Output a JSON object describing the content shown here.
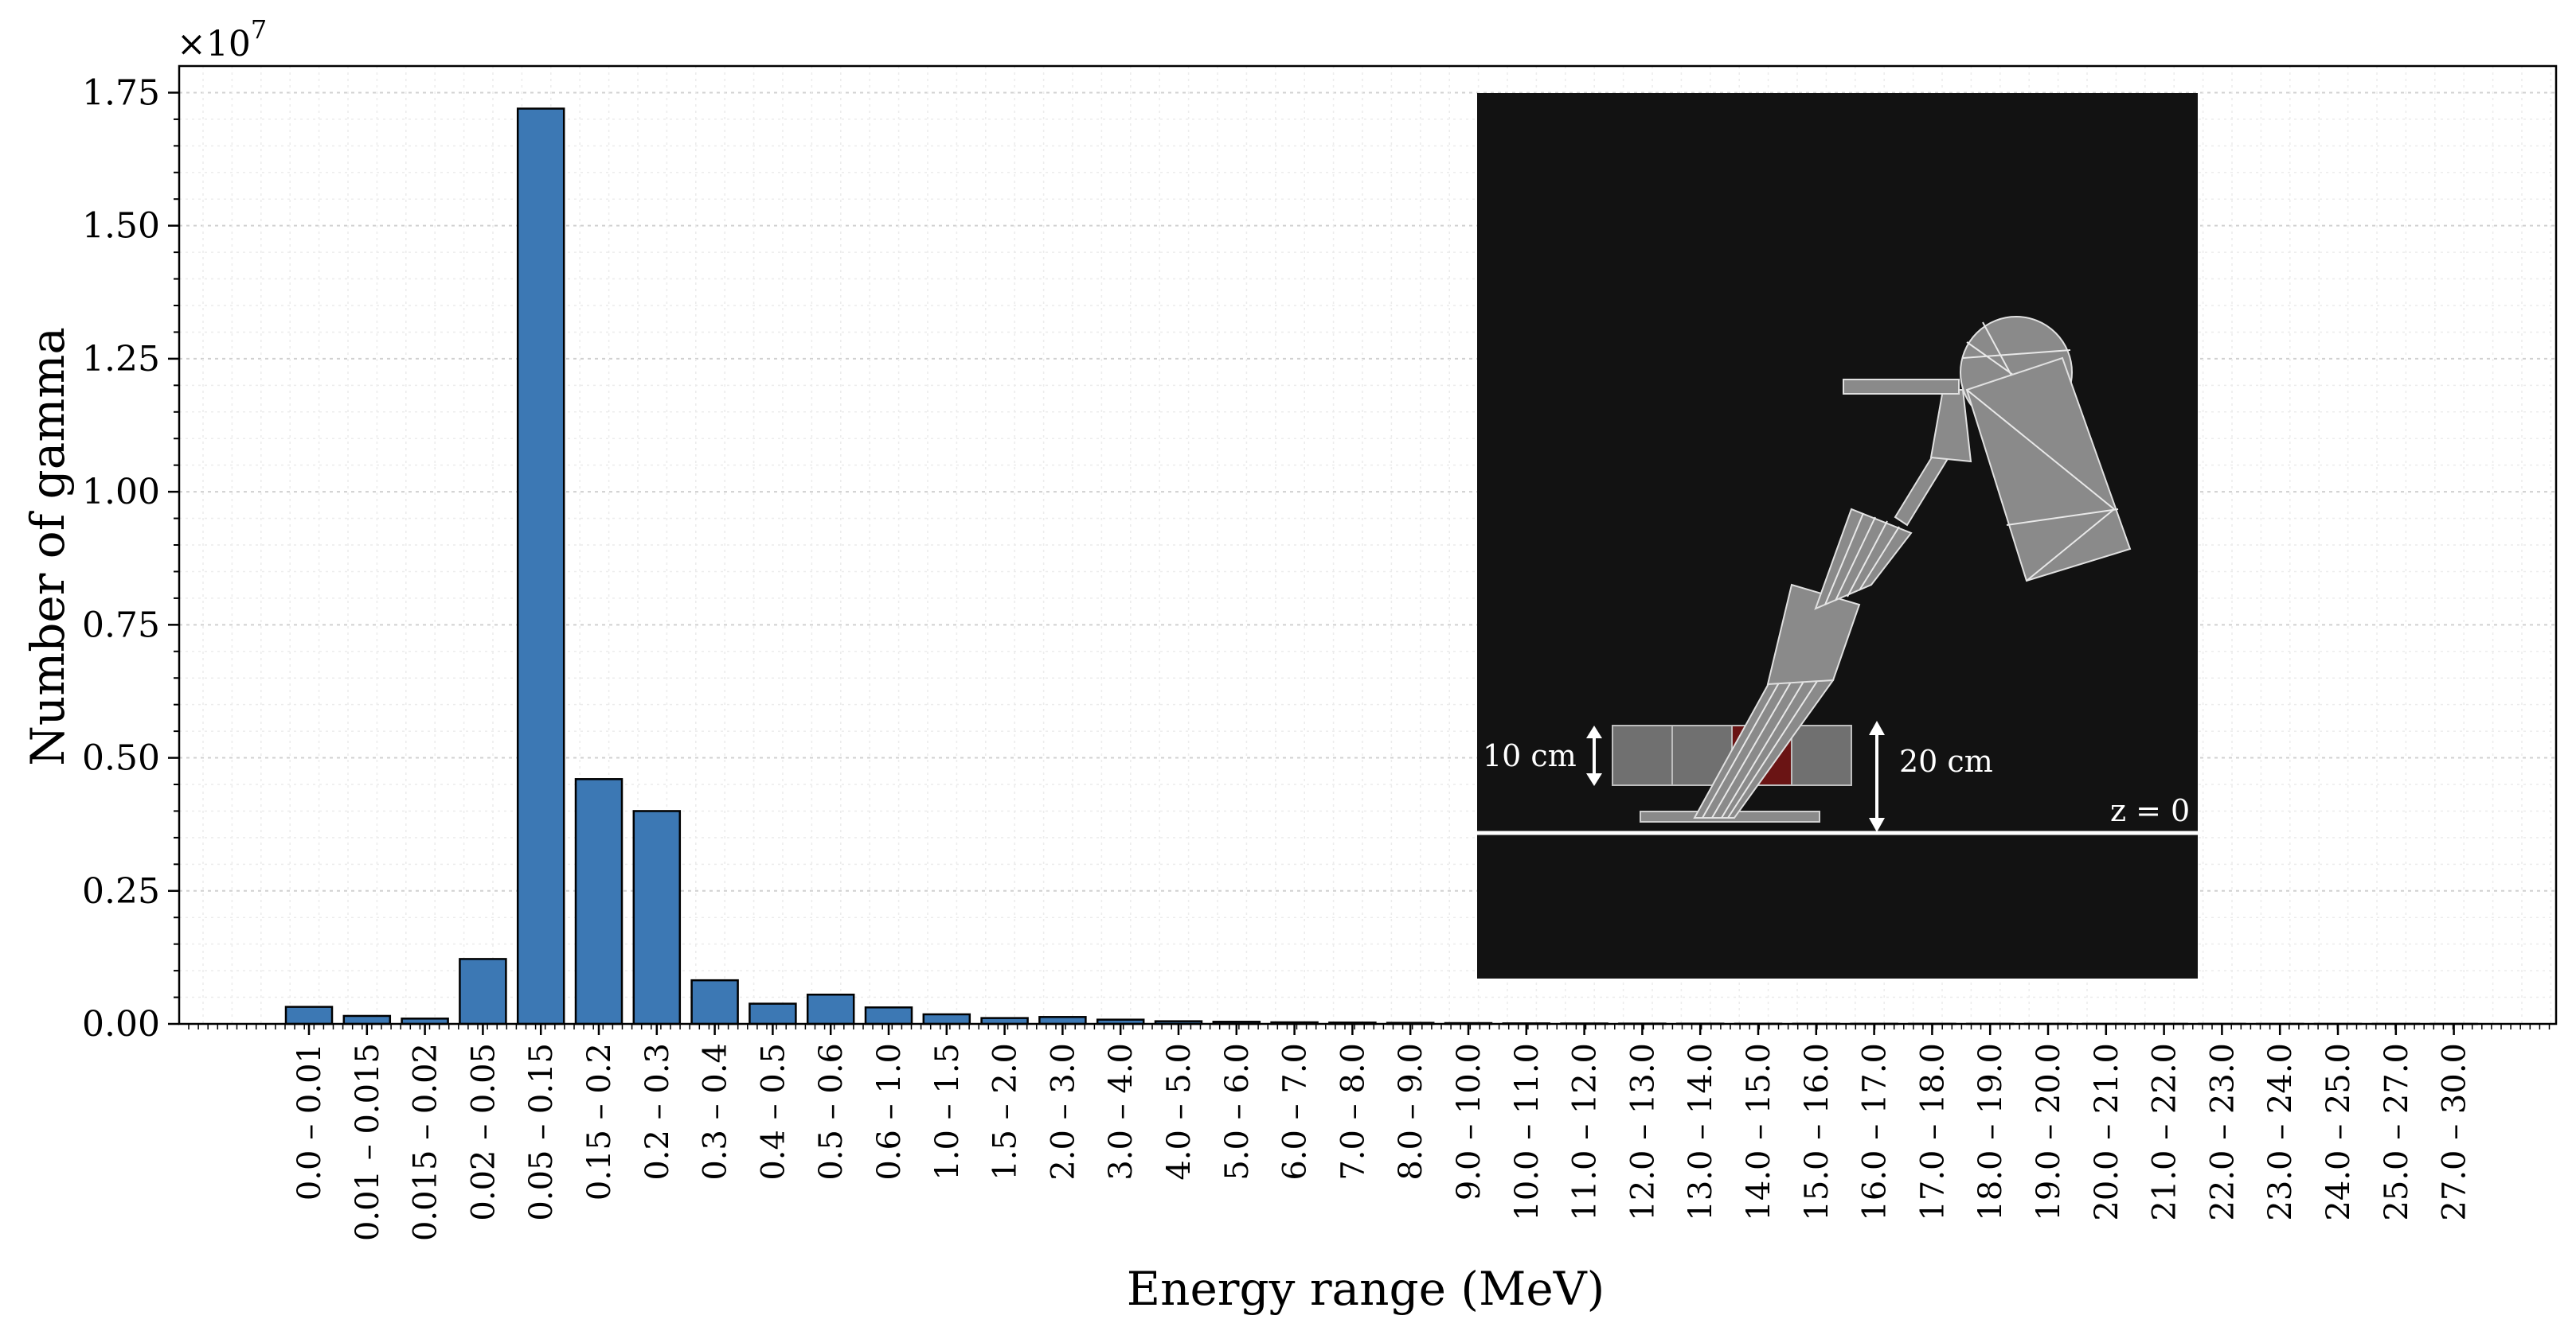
{
  "chart_data": {
    "type": "bar",
    "title": "",
    "xlabel": "Energy range (MeV)",
    "ylabel": "Number of gamma",
    "y_multiplier_label": "×10",
    "y_multiplier_exponent": "7",
    "y_scale": 10000000,
    "ylim": [
      0,
      18000000
    ],
    "y_ticks": [
      0,
      2500000,
      5000000,
      7500000,
      10000000,
      12500000,
      15000000,
      17500000
    ],
    "y_tick_labels": [
      "0.00",
      "0.25",
      "0.50",
      "0.75",
      "1.00",
      "1.25",
      "1.50",
      "1.75"
    ],
    "grid": true,
    "legend": "none",
    "bar_color": "#3c78b4",
    "bar_edge_color": "#000000",
    "categories": [
      "0.0 – 0.01",
      "0.01 – 0.015",
      "0.015 – 0.02",
      "0.02 – 0.05",
      "0.05 – 0.15",
      "0.15 – 0.2",
      "0.2 – 0.3",
      "0.3 – 0.4",
      "0.4 – 0.5",
      "0.5 – 0.6",
      "0.6 – 1.0",
      "1.0 – 1.5",
      "1.5 – 2.0",
      "2.0 – 3.0",
      "3.0 – 4.0",
      "4.0 – 5.0",
      "5.0 – 6.0",
      "6.0 – 7.0",
      "7.0 – 8.0",
      "8.0 – 9.0",
      "9.0 – 10.0",
      "10.0 – 11.0",
      "11.0 – 12.0",
      "12.0 – 13.0",
      "13.0 – 14.0",
      "14.0 – 15.0",
      "15.0 – 16.0",
      "16.0 – 17.0",
      "17.0 – 18.0",
      "18.0 – 19.0",
      "19.0 – 20.0",
      "20.0 – 21.0",
      "21.0 – 22.0",
      "22.0 – 23.0",
      "23.0 – 24.0",
      "24.0 – 25.0",
      "25.0 – 27.0",
      "27.0 – 30.0"
    ],
    "values": [
      320000,
      150000,
      100000,
      1220000,
      17200000,
      4600000,
      4000000,
      820000,
      380000,
      550000,
      310000,
      180000,
      110000,
      130000,
      80000,
      50000,
      40000,
      30000,
      25000,
      20000,
      15000,
      10000,
      8000,
      6000,
      5000,
      4000,
      3500,
      3000,
      2500,
      2000,
      1800,
      1500,
      1200,
      1000,
      800,
      600,
      500,
      300
    ],
    "inset": {
      "label_10cm": "10 cm",
      "label_20cm": "20 cm",
      "label_z0": "z = 0",
      "background_color": "#121212",
      "highlight_color": "#6a1414"
    }
  }
}
